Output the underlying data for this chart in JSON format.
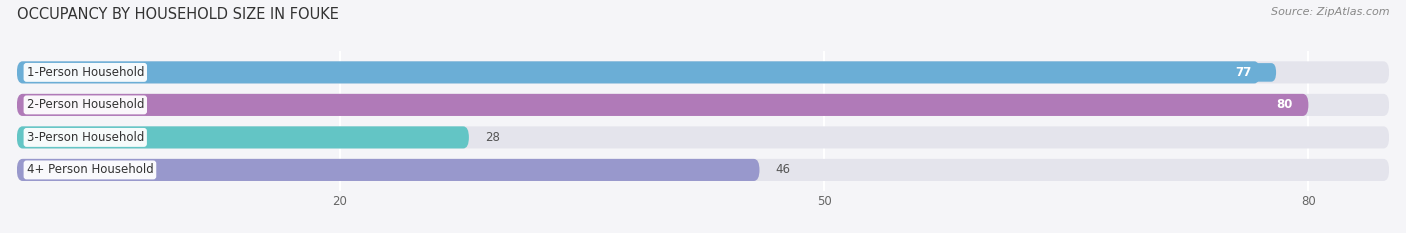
{
  "title": "OCCUPANCY BY HOUSEHOLD SIZE IN FOUKE",
  "source": "Source: ZipAtlas.com",
  "categories": [
    "1-Person Household",
    "2-Person Household",
    "3-Person Household",
    "4+ Person Household"
  ],
  "values": [
    77,
    80,
    28,
    46
  ],
  "bar_colors": [
    "#6baed6",
    "#b07ab8",
    "#63c5c5",
    "#9898cc"
  ],
  "label_colors": [
    "white",
    "white",
    "dark",
    "dark"
  ],
  "value_bg_colors": [
    "#6baed6",
    "none",
    "none",
    "none"
  ],
  "x_ticks": [
    20,
    50,
    80
  ],
  "xmax": 85,
  "background_color": "#f5f5f8",
  "bar_background": "#e4e4ec",
  "bar_height": 0.68,
  "title_fontsize": 10.5,
  "source_fontsize": 8,
  "label_fontsize": 8.5,
  "value_fontsize": 8.5,
  "tick_fontsize": 8.5
}
